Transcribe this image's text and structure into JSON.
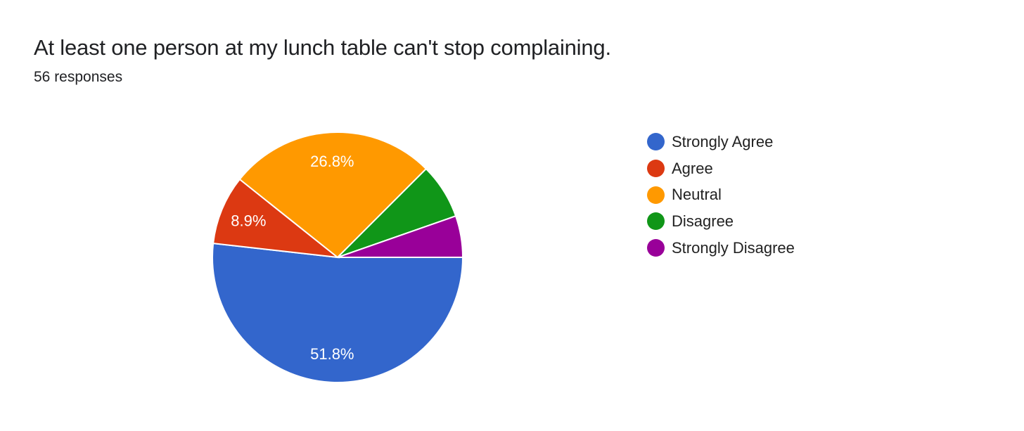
{
  "header": {
    "title": "At least one person at my lunch table can't stop complaining.",
    "responses": "56 responses"
  },
  "chart_data": {
    "type": "pie",
    "title": "At least one person at my lunch table can't stop complaining.",
    "subtitle": "56 responses",
    "total": 56,
    "start_angle_deg": 90,
    "legend_position": "right",
    "categories": [
      "Strongly Agree",
      "Agree",
      "Neutral",
      "Disagree",
      "Strongly Disagree"
    ],
    "values": [
      29,
      5,
      15,
      4,
      3
    ],
    "percentages": [
      51.8,
      8.9,
      26.8,
      7.1,
      5.4
    ],
    "data_labels": [
      "51.8%",
      "8.9%",
      "26.8%",
      "",
      ""
    ],
    "colors": [
      "#3366cc",
      "#dc3912",
      "#ff9900",
      "#109618",
      "#990099"
    ]
  },
  "legend": {
    "items": [
      {
        "label": "Strongly Agree",
        "color": "#3366cc"
      },
      {
        "label": "Agree",
        "color": "#dc3912"
      },
      {
        "label": "Neutral",
        "color": "#ff9900"
      },
      {
        "label": "Disagree",
        "color": "#109618"
      },
      {
        "label": "Strongly Disagree",
        "color": "#990099"
      }
    ]
  }
}
